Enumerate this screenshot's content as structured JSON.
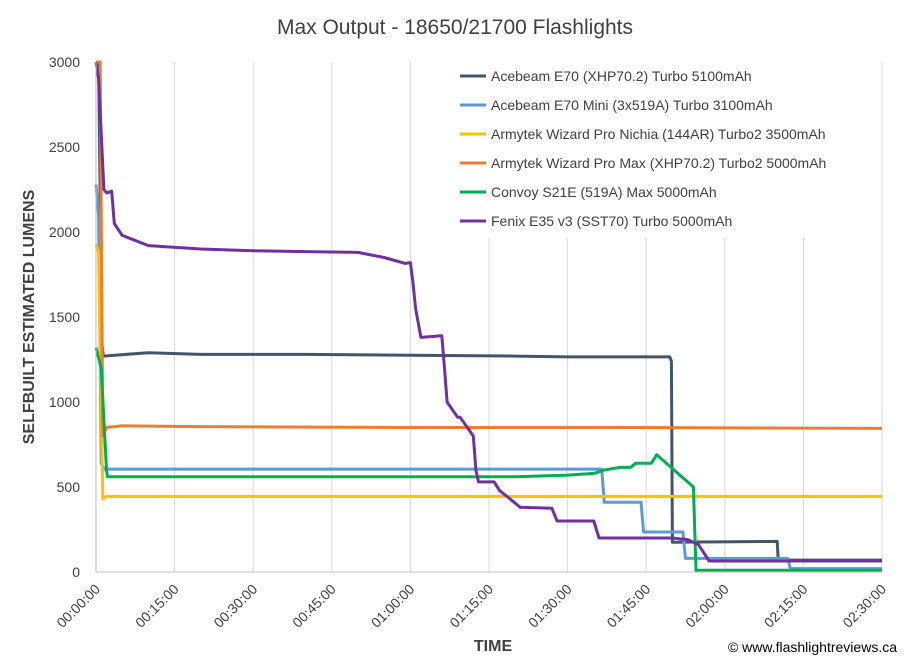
{
  "chart_data": {
    "type": "line",
    "title": "Max Output - 18650/21700 Flashlights",
    "xlabel": "TIME",
    "ylabel": "SELFBUILT ESTIMATED LUMENS",
    "x_unit": "minutes",
    "xlim": [
      0,
      150
    ],
    "ylim": [
      0,
      3000
    ],
    "x_ticks": [
      0,
      15,
      30,
      45,
      60,
      75,
      90,
      105,
      120,
      135,
      150
    ],
    "x_tick_labels": [
      "00:00:00",
      "00:15:00",
      "00:30:00",
      "00:45:00",
      "01:00:00",
      "01:15:00",
      "01:30:00",
      "01:45:00",
      "02:00:00",
      "02:15:00",
      "02:30:00"
    ],
    "y_ticks": [
      0,
      500,
      1000,
      1500,
      2000,
      2500,
      3000
    ],
    "y_tick_labels": [
      "0",
      "500",
      "1000",
      "1500",
      "2000",
      "2500",
      "3000"
    ],
    "grid": "vertical",
    "legend_position": "top-right",
    "credit": "© www.flashlightreviews.ca",
    "series": [
      {
        "name": "Acebeam E70 (XHP70.2) Turbo 5100mAh",
        "color": "#44546a",
        "x": [
          0,
          0.5,
          1.1,
          1.4,
          10,
          20,
          40,
          60,
          80,
          90,
          100,
          109.5,
          109.8,
          110,
          130,
          130.2,
          131,
          150
        ],
        "y": [
          3000,
          3000,
          1350,
          1270,
          1290,
          1280,
          1280,
          1275,
          1270,
          1265,
          1265,
          1265,
          1240,
          175,
          180,
          70,
          70,
          70
        ]
      },
      {
        "name": "Acebeam E70 Mini (3x519A) Turbo 3100mAh",
        "color": "#5b9bd5",
        "x": [
          0,
          0.5,
          1,
          1.5,
          5,
          20,
          60,
          96.5,
          97,
          104,
          104.5,
          112,
          112.5,
          132,
          132.5,
          150
        ],
        "y": [
          2280,
          2100,
          640,
          605,
          605,
          605,
          605,
          605,
          410,
          410,
          235,
          235,
          80,
          80,
          20,
          20
        ]
      },
      {
        "name": "Armytek Wizard Pro Nichia (144AR) Turbo2 3500mAh",
        "color": "#ffc000",
        "x": [
          0,
          0.5,
          1.3,
          2,
          20,
          60,
          100,
          150
        ],
        "y": [
          1930,
          1880,
          430,
          445,
          445,
          445,
          445,
          445
        ]
      },
      {
        "name": "Armytek Wizard Pro Max (XHP70.2) Turbo2 5000mAh",
        "color": "#ed7d31",
        "x": [
          0,
          0.8,
          1.3,
          2,
          5,
          20,
          60,
          100,
          150
        ],
        "y": [
          3000,
          3000,
          800,
          850,
          860,
          855,
          850,
          850,
          845
        ]
      },
      {
        "name": "Convoy S21E (519A) Max 5000mAh",
        "color": "#00b050",
        "x": [
          0,
          1,
          2,
          2.2,
          20,
          60,
          80,
          90,
          95,
          97,
          100,
          102,
          103,
          106,
          107,
          114,
          114.5,
          150
        ],
        "y": [
          1320,
          1200,
          600,
          560,
          560,
          560,
          560,
          570,
          580,
          600,
          615,
          615,
          640,
          640,
          690,
          500,
          10,
          10
        ]
      },
      {
        "name": "Fenix E35 v3 (SST70) Turbo 5000mAh",
        "color": "#7030a0",
        "x": [
          0,
          0.5,
          1.5,
          2,
          3,
          3.5,
          5,
          10,
          20,
          30,
          40,
          50,
          55,
          59,
          60,
          60.5,
          61,
          62,
          66,
          66.5,
          67,
          69,
          69.5,
          72,
          72.5,
          73,
          76,
          77,
          81,
          81.5,
          87,
          88,
          95,
          96,
          110,
          113,
          115,
          117,
          150
        ],
        "y": [
          3000,
          2900,
          2250,
          2230,
          2240,
          2050,
          1980,
          1920,
          1900,
          1890,
          1885,
          1880,
          1850,
          1815,
          1820,
          1700,
          1550,
          1380,
          1390,
          1200,
          1000,
          910,
          910,
          800,
          600,
          530,
          530,
          480,
          380,
          380,
          375,
          300,
          300,
          200,
          200,
          190,
          160,
          65,
          65
        ]
      }
    ]
  }
}
